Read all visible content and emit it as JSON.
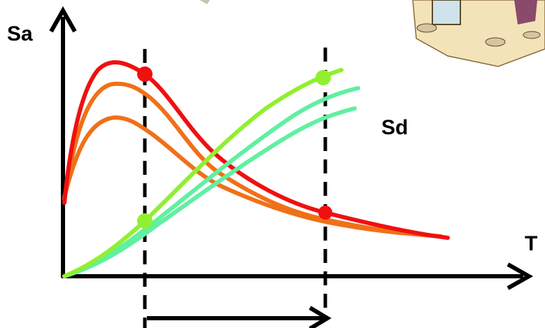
{
  "labels": {
    "y_axis": "Sa",
    "curve": "Sd",
    "x_axis": "T"
  }
}
